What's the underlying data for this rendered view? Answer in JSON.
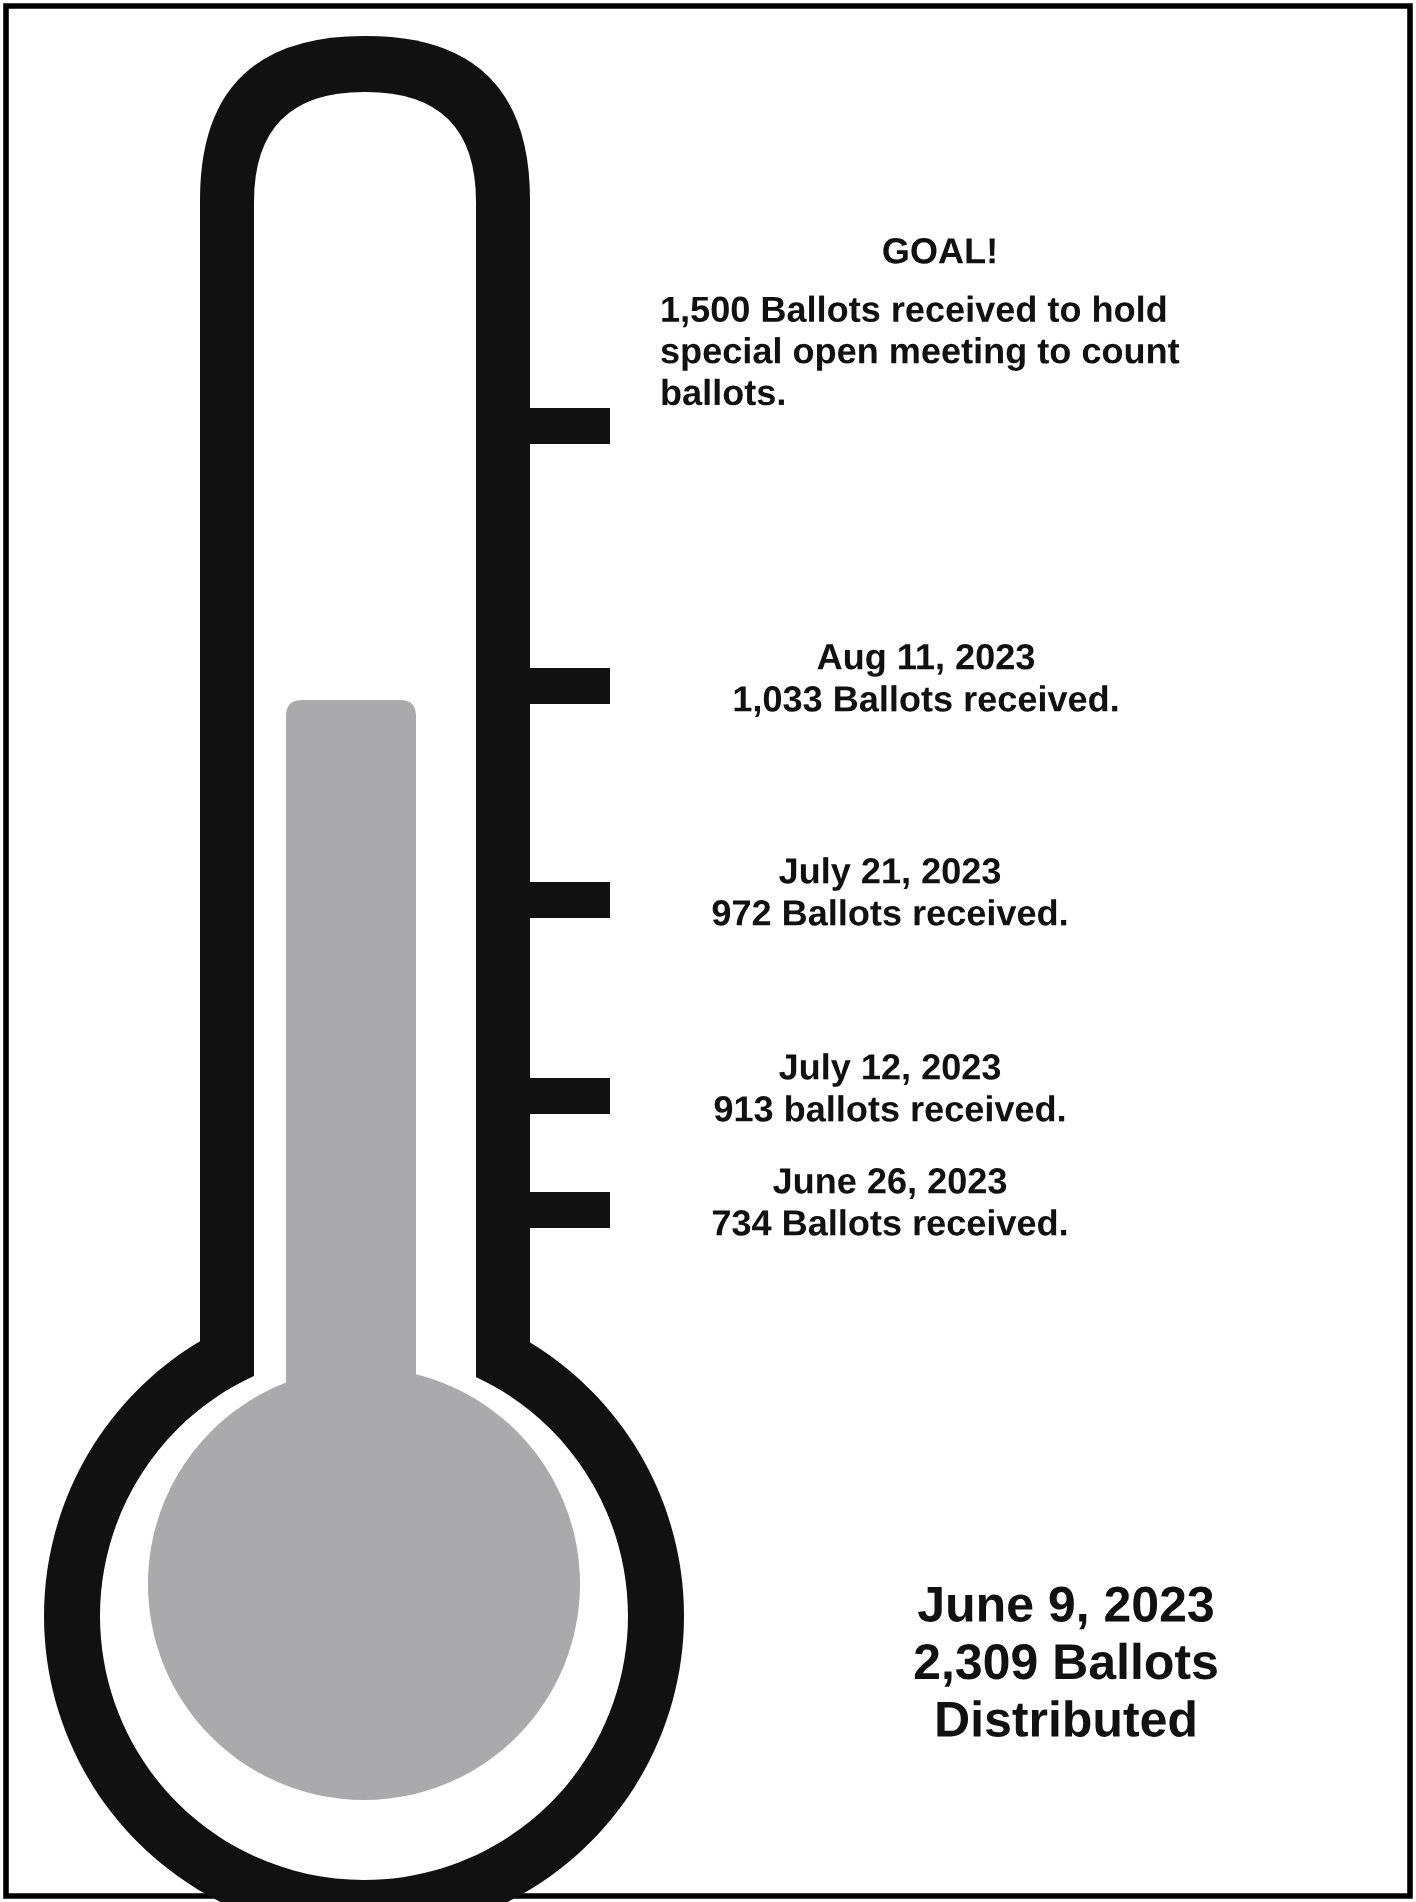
{
  "chart_data": {
    "type": "other",
    "categories": [
      "GOAL!",
      "Aug 11, 2023",
      "July 21, 2023",
      "July 12, 2023",
      "June 26, 2023"
    ],
    "values": [
      1500,
      1033,
      972,
      913,
      734
    ],
    "value_labels": [
      "1,500 Ballots received to hold\nspecial open meeting to count\nballots.",
      "1,033 Ballots received.",
      "972 Ballots received.",
      "913 ballots received.",
      "734 Ballots received."
    ],
    "annotations": [
      "June 9, 2023\n2,309 Ballots\nDistributed"
    ]
  }
}
